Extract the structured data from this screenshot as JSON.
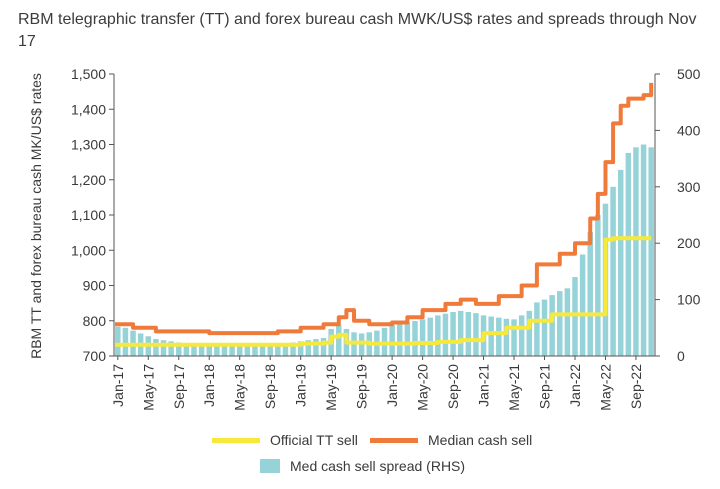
{
  "chart_data": {
    "type": "bar+line",
    "title": "RBM telegraphic transfer (TT) and forex bureau cash MWK/US$ rates and spreads through Nov 17",
    "ylabel_left": "RBM TT and forex bureau cash MK/US$ rates",
    "ylim_left": [
      700,
      1500
    ],
    "yticks_left": [
      "700",
      "800",
      "900",
      "1,000",
      "1,100",
      "1,200",
      "1,300",
      "1,400",
      "1,500"
    ],
    "ylim_right": [
      0,
      500
    ],
    "yticks_right": [
      "0",
      "100",
      "200",
      "300",
      "400",
      "500"
    ],
    "x_start": "Jan-17",
    "x_end": "Nov-22",
    "xtick_labels": [
      "Jan-17",
      "May-17",
      "Sep-17",
      "Jan-18",
      "May-18",
      "Sep-18",
      "Jan-19",
      "May-19",
      "Sep-19",
      "Jan-20",
      "May-20",
      "Sep-20",
      "Jan-21",
      "May-21",
      "Sep-21",
      "Jan-22",
      "May-22",
      "Sep-22"
    ],
    "series": [
      {
        "name": "Official TT sell",
        "type": "line",
        "axis": "left",
        "color": "#f7e93b",
        "x": [
          "Jan-17",
          "Jul-17",
          "Jan-18",
          "Jul-18",
          "Jan-19",
          "Apr-19",
          "May-19",
          "Jun-19",
          "Jul-19",
          "Oct-19",
          "Jan-20",
          "Apr-20",
          "Jul-20",
          "Oct-20",
          "Jan-21",
          "Apr-21",
          "Jul-21",
          "Oct-21",
          "Jan-22",
          "Apr-22",
          "May-22",
          "Jun-22",
          "Nov-22"
        ],
        "values": [
          732,
          732,
          732,
          732,
          735,
          738,
          755,
          760,
          738,
          735,
          735,
          737,
          740,
          745,
          765,
          780,
          800,
          818,
          818,
          818,
          1030,
          1034,
          1034
        ]
      },
      {
        "name": "Median cash sell",
        "type": "line",
        "axis": "left",
        "color": "#f07a3a",
        "x": [
          "Jan-17",
          "Mar-17",
          "Jun-17",
          "Sep-17",
          "Jan-18",
          "Jul-18",
          "Oct-18",
          "Jan-19",
          "Apr-19",
          "Jun-19",
          "Jul-19",
          "Aug-19",
          "Oct-19",
          "Jan-20",
          "Mar-20",
          "May-20",
          "Aug-20",
          "Oct-20",
          "Dec-20",
          "Mar-21",
          "Jun-21",
          "Aug-21",
          "Nov-21",
          "Jan-22",
          "Mar-22",
          "Apr-22",
          "May-22",
          "Jun-22",
          "Jul-22",
          "Aug-22",
          "Oct-22",
          "Nov-22"
        ],
        "values": [
          790,
          780,
          770,
          770,
          765,
          765,
          770,
          780,
          790,
          810,
          830,
          800,
          790,
          795,
          810,
          830,
          848,
          860,
          848,
          870,
          900,
          960,
          990,
          1020,
          1090,
          1160,
          1250,
          1360,
          1410,
          1430,
          1440,
          1475
        ]
      },
      {
        "name": "Med cash sell spread (RHS)",
        "type": "bar",
        "axis": "right",
        "color": "#96d3d8",
        "x": [
          "Jan-17",
          "Feb-17",
          "Mar-17",
          "Apr-17",
          "May-17",
          "Jun-17",
          "Jul-17",
          "Aug-17",
          "Sep-17",
          "Oct-17",
          "Nov-17",
          "Dec-17",
          "Jan-18",
          "Feb-18",
          "Mar-18",
          "Apr-18",
          "May-18",
          "Jun-18",
          "Jul-18",
          "Aug-18",
          "Sep-18",
          "Oct-18",
          "Nov-18",
          "Dec-18",
          "Jan-19",
          "Feb-19",
          "Mar-19",
          "Apr-19",
          "May-19",
          "Jun-19",
          "Jul-19",
          "Aug-19",
          "Sep-19",
          "Oct-19",
          "Nov-19",
          "Dec-19",
          "Jan-20",
          "Feb-20",
          "Mar-20",
          "Apr-20",
          "May-20",
          "Jun-20",
          "Jul-20",
          "Aug-20",
          "Sep-20",
          "Oct-20",
          "Nov-20",
          "Dec-20",
          "Jan-21",
          "Feb-21",
          "Mar-21",
          "Apr-21",
          "May-21",
          "Jun-21",
          "Jul-21",
          "Aug-21",
          "Sep-21",
          "Oct-21",
          "Nov-21",
          "Dec-21",
          "Jan-22",
          "Feb-22",
          "Mar-22",
          "Apr-22",
          "May-22",
          "Jun-22",
          "Jul-22",
          "Aug-22",
          "Sep-22",
          "Oct-22",
          "Nov-22"
        ],
        "values": [
          52,
          50,
          45,
          40,
          35,
          30,
          28,
          26,
          24,
          22,
          20,
          20,
          20,
          20,
          18,
          18,
          18,
          18,
          18,
          18,
          18,
          20,
          22,
          24,
          26,
          28,
          30,
          32,
          48,
          55,
          48,
          42,
          40,
          42,
          45,
          50,
          55,
          58,
          60,
          62,
          65,
          68,
          72,
          75,
          78,
          80,
          78,
          76,
          72,
          70,
          68,
          66,
          65,
          72,
          80,
          95,
          100,
          108,
          115,
          120,
          140,
          180,
          220,
          250,
          270,
          300,
          330,
          360,
          370,
          375,
          370
        ]
      }
    ]
  }
}
